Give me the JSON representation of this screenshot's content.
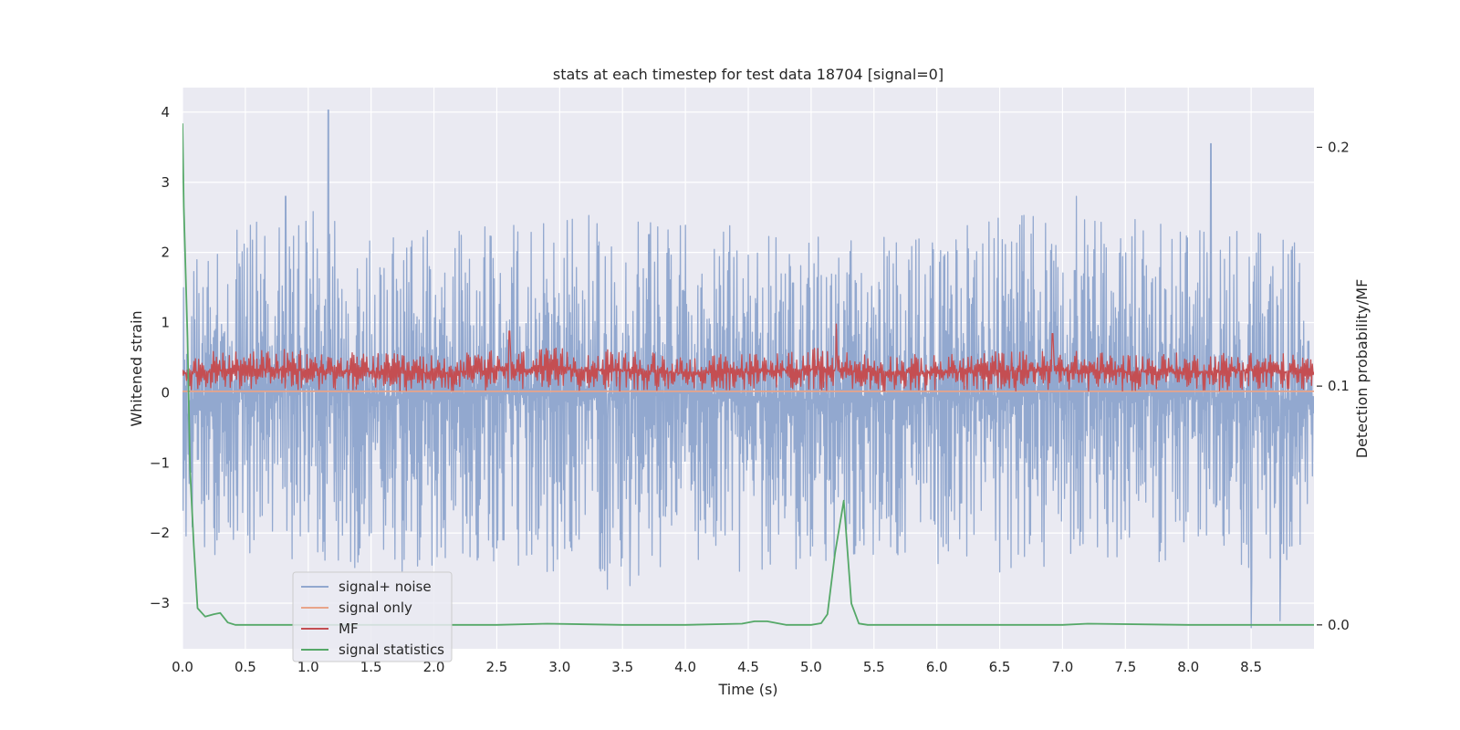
{
  "chart_data": {
    "type": "line",
    "title": "stats at each timestep for test data 18704 [signal=0]",
    "xlabel": "Time (s)",
    "ylabel": "Whitened strain",
    "y2label": "Detection probability/MF",
    "xlim": [
      0.0,
      9.0
    ],
    "ylim": [
      -3.65,
      4.35
    ],
    "y2lim": [
      -0.01,
      0.225
    ],
    "x_ticks": [
      0.0,
      0.5,
      1.0,
      1.5,
      2.0,
      2.5,
      3.0,
      3.5,
      4.0,
      4.5,
      5.0,
      5.5,
      6.0,
      6.5,
      7.0,
      7.5,
      8.0,
      8.5
    ],
    "x_tick_labels": [
      "0.0",
      "0.5",
      "1.0",
      "1.5",
      "2.0",
      "2.5",
      "3.0",
      "3.5",
      "4.0",
      "4.5",
      "5.0",
      "5.5",
      "6.0",
      "6.5",
      "7.0",
      "7.5",
      "8.0",
      "8.5"
    ],
    "y_ticks": [
      -3,
      -2,
      -1,
      0,
      1,
      2,
      3,
      4
    ],
    "y_tick_labels": [
      "−3",
      "−2",
      "−1",
      "0",
      "1",
      "2",
      "3",
      "4"
    ],
    "y2_ticks": [
      0.0,
      0.1,
      0.2
    ],
    "y2_tick_labels": [
      "0.0",
      "0.1",
      "0.2"
    ],
    "grid": true,
    "legend_position": "lower-left",
    "series": [
      {
        "name": "signal+ noise",
        "color": "#92a8cf",
        "axis": "left",
        "envelope": {
          "x": [
            0.0,
            0.5,
            1.0,
            1.5,
            2.0,
            2.5,
            3.0,
            3.5,
            4.0,
            4.5,
            5.0,
            5.5,
            6.0,
            6.5,
            7.0,
            7.5,
            8.0,
            8.5,
            9.0
          ],
          "upper": [
            1.9,
            2.4,
            2.6,
            2.5,
            2.3,
            2.4,
            2.5,
            2.6,
            2.4,
            2.4,
            2.3,
            2.3,
            2.4,
            2.5,
            2.6,
            2.5,
            2.4,
            2.5,
            2.0
          ],
          "lower": [
            -2.6,
            -2.3,
            -2.4,
            -2.6,
            -2.5,
            -2.4,
            -2.6,
            -2.7,
            -2.4,
            -2.6,
            -2.5,
            -2.4,
            -2.5,
            -2.6,
            -2.5,
            -2.4,
            -2.5,
            -2.7,
            -2.3
          ]
        },
        "peaks": [
          {
            "x": 1.16,
            "y": 4.03
          },
          {
            "x": 8.18,
            "y": 3.55
          },
          {
            "x": 0.82,
            "y": 2.8
          },
          {
            "x": 7.11,
            "y": 2.8
          },
          {
            "x": 8.5,
            "y": -3.35
          },
          {
            "x": 8.73,
            "y": -3.25
          },
          {
            "x": 3.38,
            "y": -2.8
          },
          {
            "x": 3.56,
            "y": -2.75
          }
        ]
      },
      {
        "name": "signal only",
        "color": "#e8a48a",
        "axis": "left",
        "x": [
          0.0,
          9.0
        ],
        "values": [
          0.02,
          0.02
        ]
      },
      {
        "name": "MF",
        "color": "#c44e52",
        "axis": "right",
        "envelope": {
          "x": [
            0.0,
            0.5,
            1.0,
            1.5,
            2.0,
            2.5,
            3.0,
            3.5,
            4.0,
            4.5,
            5.0,
            5.5,
            6.0,
            6.5,
            7.0,
            7.5,
            8.0,
            8.5,
            9.0
          ],
          "upper": [
            0.113,
            0.116,
            0.115,
            0.114,
            0.113,
            0.115,
            0.116,
            0.115,
            0.113,
            0.114,
            0.116,
            0.114,
            0.113,
            0.115,
            0.115,
            0.114,
            0.114,
            0.115,
            0.113
          ],
          "lower": [
            0.098,
            0.098,
            0.098,
            0.098,
            0.098,
            0.098,
            0.098,
            0.098,
            0.098,
            0.098,
            0.098,
            0.098,
            0.098,
            0.098,
            0.098,
            0.098,
            0.098,
            0.098,
            0.098
          ]
        },
        "peaks": [
          {
            "x": 5.2,
            "y": 0.126
          },
          {
            "x": 2.6,
            "y": 0.123
          },
          {
            "x": 6.92,
            "y": 0.122
          }
        ]
      },
      {
        "name": "signal statistics",
        "color": "#55a868",
        "axis": "right",
        "x": [
          0.0,
          0.01,
          0.04,
          0.06,
          0.09,
          0.12,
          0.18,
          0.25,
          0.3,
          0.36,
          0.42,
          0.5,
          1.0,
          1.5,
          2.0,
          2.5,
          2.9,
          3.5,
          4.0,
          4.45,
          4.55,
          4.65,
          4.8,
          5.0,
          5.08,
          5.13,
          5.19,
          5.26,
          5.32,
          5.38,
          5.45,
          6.0,
          7.0,
          7.2,
          8.0,
          9.0
        ],
        "values": [
          0.21,
          0.175,
          0.12,
          0.065,
          0.033,
          0.007,
          0.0035,
          0.0045,
          0.005,
          0.001,
          0.0,
          0.0,
          0.0,
          0.0,
          0.0,
          0.0,
          0.0005,
          0.0,
          0.0,
          0.0005,
          0.0015,
          0.0015,
          0.0,
          0.0,
          0.0007,
          0.0045,
          0.03,
          0.052,
          0.009,
          0.0006,
          0.0,
          0.0,
          0.0,
          0.0005,
          0.0,
          0.0
        ]
      }
    ]
  }
}
